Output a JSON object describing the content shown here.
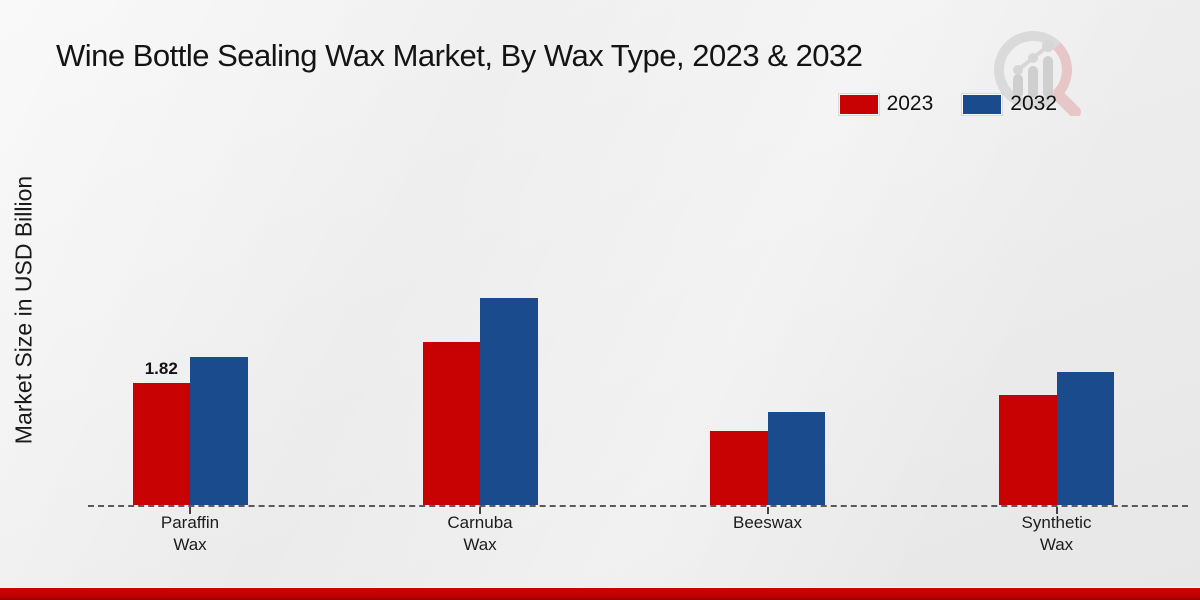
{
  "title": "Wine Bottle Sealing Wax Market, By Wax Type, 2023 & 2032",
  "colors": {
    "series_2023": "#c80202",
    "series_2032": "#1a4b8c",
    "bottom_stripe": "#c00000",
    "baseline": "#5a5a5a"
  },
  "chart_data": {
    "type": "bar",
    "title": "Wine Bottle Sealing Wax Market, By Wax Type, 2023 & 2032",
    "xlabel": "",
    "ylabel": "Market Size in USD Billion",
    "categories": [
      "Paraffin\nWax",
      "Carnuba\nWax",
      "Beeswax",
      "Synthetic\nWax"
    ],
    "series": [
      {
        "name": "2023",
        "color": "#c80202",
        "values": [
          1.82,
          2.43,
          1.1,
          1.64
        ]
      },
      {
        "name": "2032",
        "color": "#1a4b8c",
        "values": [
          2.21,
          3.09,
          1.39,
          1.98
        ]
      }
    ],
    "value_labels": [
      {
        "series_index": 0,
        "category_index": 0,
        "text": "1.82"
      }
    ],
    "legend_position": "top-right",
    "grid": false,
    "axis_style": "dashed-baseline",
    "ylim": [
      0,
      3.5
    ]
  },
  "legend": {
    "items": [
      {
        "label": "2023",
        "color": "#c80202"
      },
      {
        "label": "2032",
        "color": "#1a4b8c"
      }
    ]
  },
  "logo": {
    "name": "market-research-magnifier-logo"
  }
}
